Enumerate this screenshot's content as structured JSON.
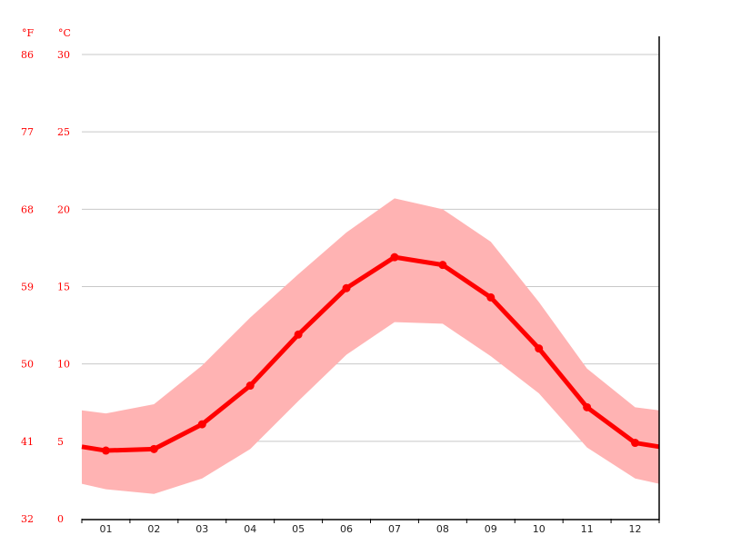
{
  "chart_data": {
    "type": "line",
    "units": {
      "left": "°F",
      "right": "°C"
    },
    "categories": [
      "01",
      "02",
      "03",
      "04",
      "05",
      "06",
      "07",
      "08",
      "09",
      "10",
      "11",
      "12"
    ],
    "y_ticks_c": [
      0,
      5,
      10,
      15,
      20,
      25,
      30
    ],
    "y_ticks_f": [
      32,
      41,
      50,
      59,
      68,
      77,
      86
    ],
    "ylim": [
      0,
      30
    ],
    "grid": true,
    "series": [
      {
        "role": "mean",
        "values": [
          4.4,
          4.5,
          6.1,
          8.6,
          11.9,
          14.9,
          16.9,
          16.4,
          14.3,
          11.0,
          7.2,
          4.9
        ]
      },
      {
        "role": "max",
        "values": [
          6.8,
          7.4,
          9.9,
          13.0,
          15.8,
          18.5,
          20.7,
          20.0,
          17.9,
          14.0,
          9.7,
          7.2
        ]
      },
      {
        "role": "min",
        "values": [
          1.9,
          1.6,
          2.6,
          4.5,
          7.6,
          10.6,
          12.7,
          12.6,
          10.5,
          8.1,
          4.6,
          2.6
        ]
      }
    ],
    "colors": {
      "line": "#ff0000",
      "band": "#ffb3b3",
      "grid": "#c8c8c8",
      "axis_labels": "#ff0000"
    }
  }
}
